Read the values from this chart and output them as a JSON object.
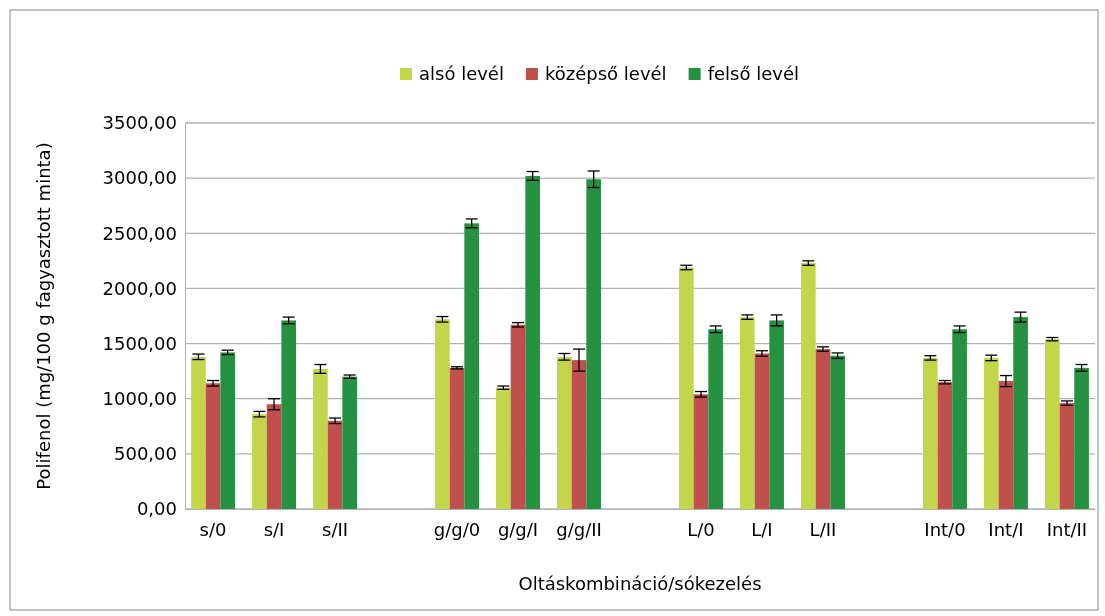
{
  "chart_data": {
    "type": "bar",
    "ylabel": "Polifenol (mg/100 g fagyasztott minta)",
    "xlabel": "Oltáskombináció/sókezelés",
    "categories": [
      "s/0",
      "s/I",
      "s/II",
      null,
      "g/g/0",
      "g/g/I",
      "g/g/II",
      null,
      "L/0",
      "L/I",
      "L/II",
      null,
      "Int/0",
      "Int/I",
      "Int/II"
    ],
    "series": [
      {
        "name": "alsó levél",
        "color": "#c3d54b",
        "values": [
          1380,
          860,
          1270,
          null,
          1720,
          1100,
          1380,
          null,
          2190,
          1740,
          2230,
          null,
          1370,
          1370,
          1540
        ],
        "errors": [
          25,
          25,
          40,
          null,
          25,
          15,
          30,
          null,
          20,
          20,
          20,
          null,
          20,
          25,
          15
        ]
      },
      {
        "name": "középső levél",
        "color": "#c0504d",
        "values": [
          1140,
          950,
          800,
          null,
          1280,
          1670,
          1350,
          null,
          1040,
          1410,
          1450,
          null,
          1150,
          1160,
          960
        ],
        "errors": [
          25,
          50,
          25,
          null,
          10,
          20,
          100,
          null,
          25,
          25,
          20,
          null,
          15,
          50,
          20
        ]
      },
      {
        "name": "felső levél",
        "color": "#279142",
        "values": [
          1420,
          1710,
          1200,
          null,
          2590,
          3020,
          2990,
          null,
          1630,
          1710,
          1390,
          null,
          1630,
          1740,
          1280
        ],
        "errors": [
          20,
          30,
          15,
          null,
          40,
          40,
          75,
          null,
          30,
          50,
          25,
          null,
          30,
          45,
          30
        ]
      }
    ],
    "ylim": [
      0,
      3500
    ],
    "yticks": [
      {
        "value": 0,
        "label": "0,00"
      },
      {
        "value": 500,
        "label": "500,00"
      },
      {
        "value": 1000,
        "label": "1000,00"
      },
      {
        "value": 1500,
        "label": "1500,00"
      },
      {
        "value": 2000,
        "label": "2000,00"
      },
      {
        "value": 2500,
        "label": "2500,00"
      },
      {
        "value": 3000,
        "label": "3000,00"
      },
      {
        "value": 3500,
        "label": "3500,00"
      }
    ],
    "grid": "y",
    "legend": "top"
  }
}
